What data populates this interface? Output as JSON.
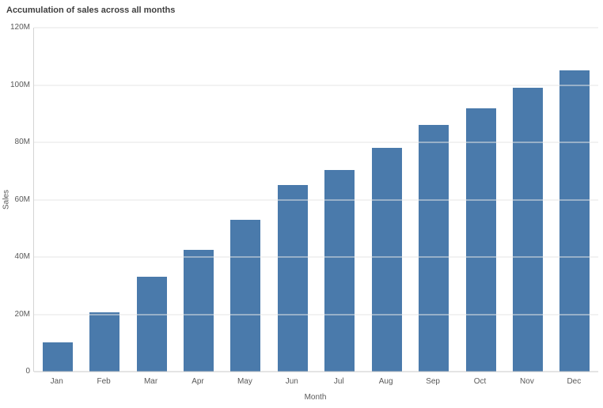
{
  "title": "Accumulation of sales across all months",
  "chart_data": {
    "type": "bar",
    "title": "Accumulation of sales across all months",
    "categories": [
      "Jan",
      "Feb",
      "Mar",
      "Apr",
      "May",
      "Jun",
      "Jul",
      "Aug",
      "Sep",
      "Oct",
      "Nov",
      "Dec"
    ],
    "values": [
      10.3,
      20.7,
      33,
      42.5,
      53,
      65,
      70.3,
      78,
      86,
      92,
      99,
      105
    ],
    "value_unit": "M",
    "xlabel": "Month",
    "ylabel": "Sales",
    "ylim": [
      0,
      120
    ],
    "y_ticks": [
      "0",
      "20M",
      "40M",
      "60M",
      "80M",
      "100M",
      "120M"
    ],
    "grid": "horizontal",
    "legend": "none",
    "bar_color": "#4a7aab",
    "axis_text_color": "#595959",
    "title_color": "#404040"
  }
}
